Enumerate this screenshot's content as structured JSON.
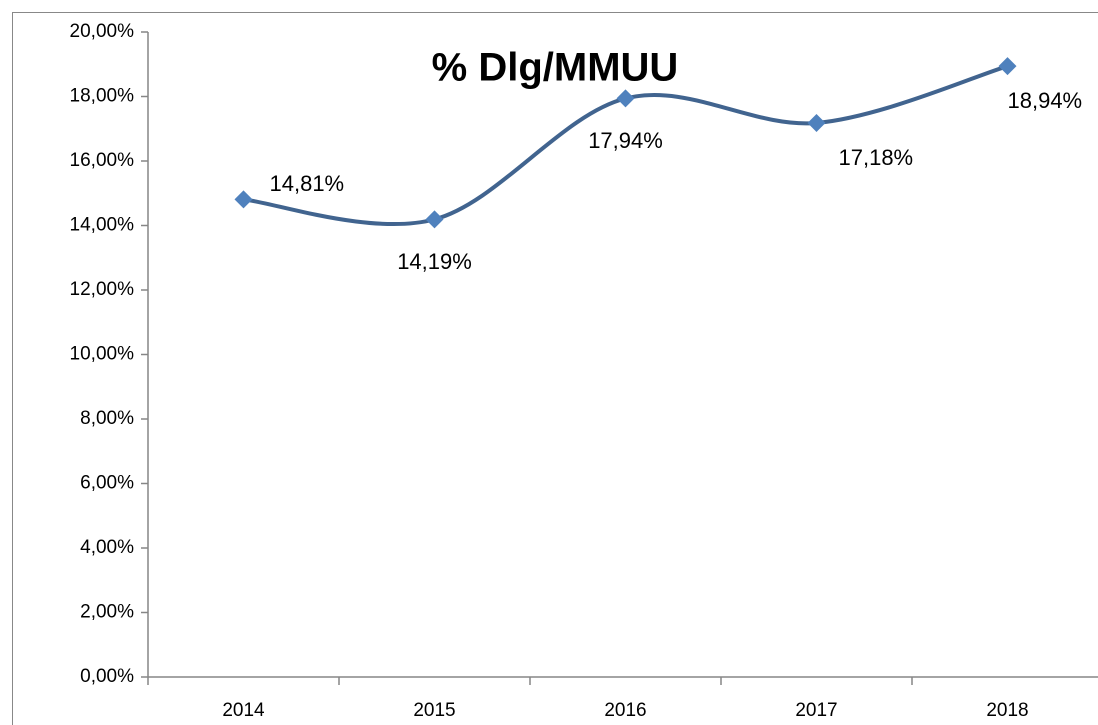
{
  "chart_data": {
    "type": "line",
    "title": "% Dlg/MMUU",
    "categories": [
      "2014",
      "2015",
      "2016",
      "2017",
      "2018"
    ],
    "series": [
      {
        "name": "% Dlg/MMUU",
        "color": "#41648f",
        "marker_color": "#4f81bd",
        "values": [
          14.81,
          14.19,
          17.94,
          17.18,
          18.94
        ],
        "value_labels": [
          "14,81%",
          "14,19%",
          "17,94%",
          "17,18%",
          "18,94%"
        ]
      }
    ],
    "ylim": [
      0,
      20
    ],
    "yticks": [
      {
        "value": 0,
        "label": "0,00%"
      },
      {
        "value": 2,
        "label": "2,00%"
      },
      {
        "value": 4,
        "label": "4,00%"
      },
      {
        "value": 6,
        "label": "6,00%"
      },
      {
        "value": 8,
        "label": "8,00%"
      },
      {
        "value": 10,
        "label": "10,00%"
      },
      {
        "value": 12,
        "label": "12,00%"
      },
      {
        "value": 14,
        "label": "14,00%"
      },
      {
        "value": 16,
        "label": "16,00%"
      },
      {
        "value": 18,
        "label": "18,00%"
      },
      {
        "value": 20,
        "label": "20,00%"
      }
    ],
    "smooth": true
  }
}
